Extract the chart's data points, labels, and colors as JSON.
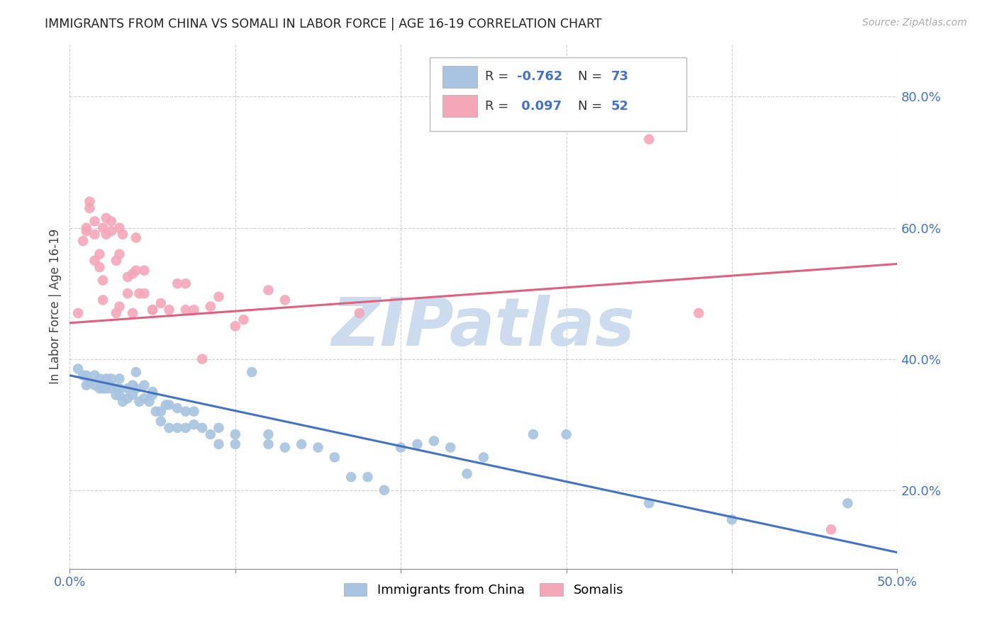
{
  "title": "IMMIGRANTS FROM CHINA VS SOMALI IN LABOR FORCE | AGE 16-19 CORRELATION CHART",
  "source_text": "Source: ZipAtlas.com",
  "ylabel": "In Labor Force | Age 16-19",
  "xlim": [
    0.0,
    0.5
  ],
  "ylim": [
    0.08,
    0.88
  ],
  "xtick_labels": [
    "0.0%",
    "",
    "",
    "",
    "",
    "50.0%"
  ],
  "xtick_values": [
    0.0,
    0.1,
    0.2,
    0.3,
    0.4,
    0.5
  ],
  "ytick_labels": [
    "20.0%",
    "40.0%",
    "60.0%",
    "80.0%"
  ],
  "ytick_values": [
    0.2,
    0.4,
    0.6,
    0.8
  ],
  "china_color": "#a8c4e0",
  "somali_color": "#f4a7b9",
  "china_line_color": "#4472c4",
  "somali_line_color": "#e06080",
  "watermark": "ZIPatlas",
  "watermark_color": "#ccdcee",
  "watermark_fontsize": 68,
  "china_scatter_x": [
    0.005,
    0.008,
    0.01,
    0.01,
    0.012,
    0.015,
    0.015,
    0.018,
    0.018,
    0.02,
    0.02,
    0.022,
    0.022,
    0.025,
    0.025,
    0.025,
    0.028,
    0.028,
    0.03,
    0.03,
    0.03,
    0.032,
    0.035,
    0.035,
    0.038,
    0.038,
    0.04,
    0.04,
    0.042,
    0.045,
    0.045,
    0.048,
    0.05,
    0.05,
    0.052,
    0.055,
    0.055,
    0.058,
    0.06,
    0.06,
    0.065,
    0.065,
    0.07,
    0.07,
    0.075,
    0.075,
    0.08,
    0.085,
    0.09,
    0.09,
    0.1,
    0.1,
    0.11,
    0.12,
    0.12,
    0.13,
    0.14,
    0.15,
    0.16,
    0.17,
    0.18,
    0.19,
    0.2,
    0.21,
    0.22,
    0.23,
    0.24,
    0.25,
    0.28,
    0.3,
    0.35,
    0.4,
    0.47
  ],
  "china_scatter_y": [
    0.385,
    0.375,
    0.375,
    0.36,
    0.365,
    0.36,
    0.375,
    0.355,
    0.37,
    0.36,
    0.355,
    0.37,
    0.355,
    0.36,
    0.355,
    0.37,
    0.345,
    0.355,
    0.345,
    0.355,
    0.37,
    0.335,
    0.34,
    0.355,
    0.345,
    0.36,
    0.355,
    0.38,
    0.335,
    0.34,
    0.36,
    0.335,
    0.345,
    0.35,
    0.32,
    0.305,
    0.32,
    0.33,
    0.33,
    0.295,
    0.325,
    0.295,
    0.295,
    0.32,
    0.3,
    0.32,
    0.295,
    0.285,
    0.295,
    0.27,
    0.27,
    0.285,
    0.38,
    0.27,
    0.285,
    0.265,
    0.27,
    0.265,
    0.25,
    0.22,
    0.22,
    0.2,
    0.265,
    0.27,
    0.275,
    0.265,
    0.225,
    0.25,
    0.285,
    0.285,
    0.18,
    0.155,
    0.18
  ],
  "somali_scatter_x": [
    0.005,
    0.008,
    0.01,
    0.01,
    0.012,
    0.012,
    0.015,
    0.015,
    0.015,
    0.018,
    0.018,
    0.02,
    0.02,
    0.02,
    0.022,
    0.022,
    0.025,
    0.025,
    0.028,
    0.028,
    0.03,
    0.03,
    0.03,
    0.032,
    0.035,
    0.035,
    0.038,
    0.038,
    0.04,
    0.04,
    0.042,
    0.045,
    0.045,
    0.05,
    0.05,
    0.055,
    0.06,
    0.065,
    0.07,
    0.07,
    0.075,
    0.08,
    0.085,
    0.09,
    0.1,
    0.105,
    0.12,
    0.13,
    0.175,
    0.35,
    0.38,
    0.46
  ],
  "somali_scatter_y": [
    0.47,
    0.58,
    0.595,
    0.6,
    0.64,
    0.63,
    0.61,
    0.59,
    0.55,
    0.56,
    0.54,
    0.6,
    0.52,
    0.49,
    0.615,
    0.59,
    0.61,
    0.595,
    0.55,
    0.47,
    0.6,
    0.56,
    0.48,
    0.59,
    0.5,
    0.525,
    0.47,
    0.53,
    0.585,
    0.535,
    0.5,
    0.535,
    0.5,
    0.475,
    0.475,
    0.485,
    0.475,
    0.515,
    0.515,
    0.475,
    0.475,
    0.4,
    0.48,
    0.495,
    0.45,
    0.46,
    0.505,
    0.49,
    0.47,
    0.735,
    0.47,
    0.14
  ],
  "china_trend_x": [
    0.0,
    0.5
  ],
  "china_trend_y": [
    0.375,
    0.105
  ],
  "somali_trend_x": [
    0.0,
    0.5
  ],
  "somali_trend_y": [
    0.455,
    0.545
  ],
  "background_color": "#ffffff",
  "grid_color": "#cccccc"
}
